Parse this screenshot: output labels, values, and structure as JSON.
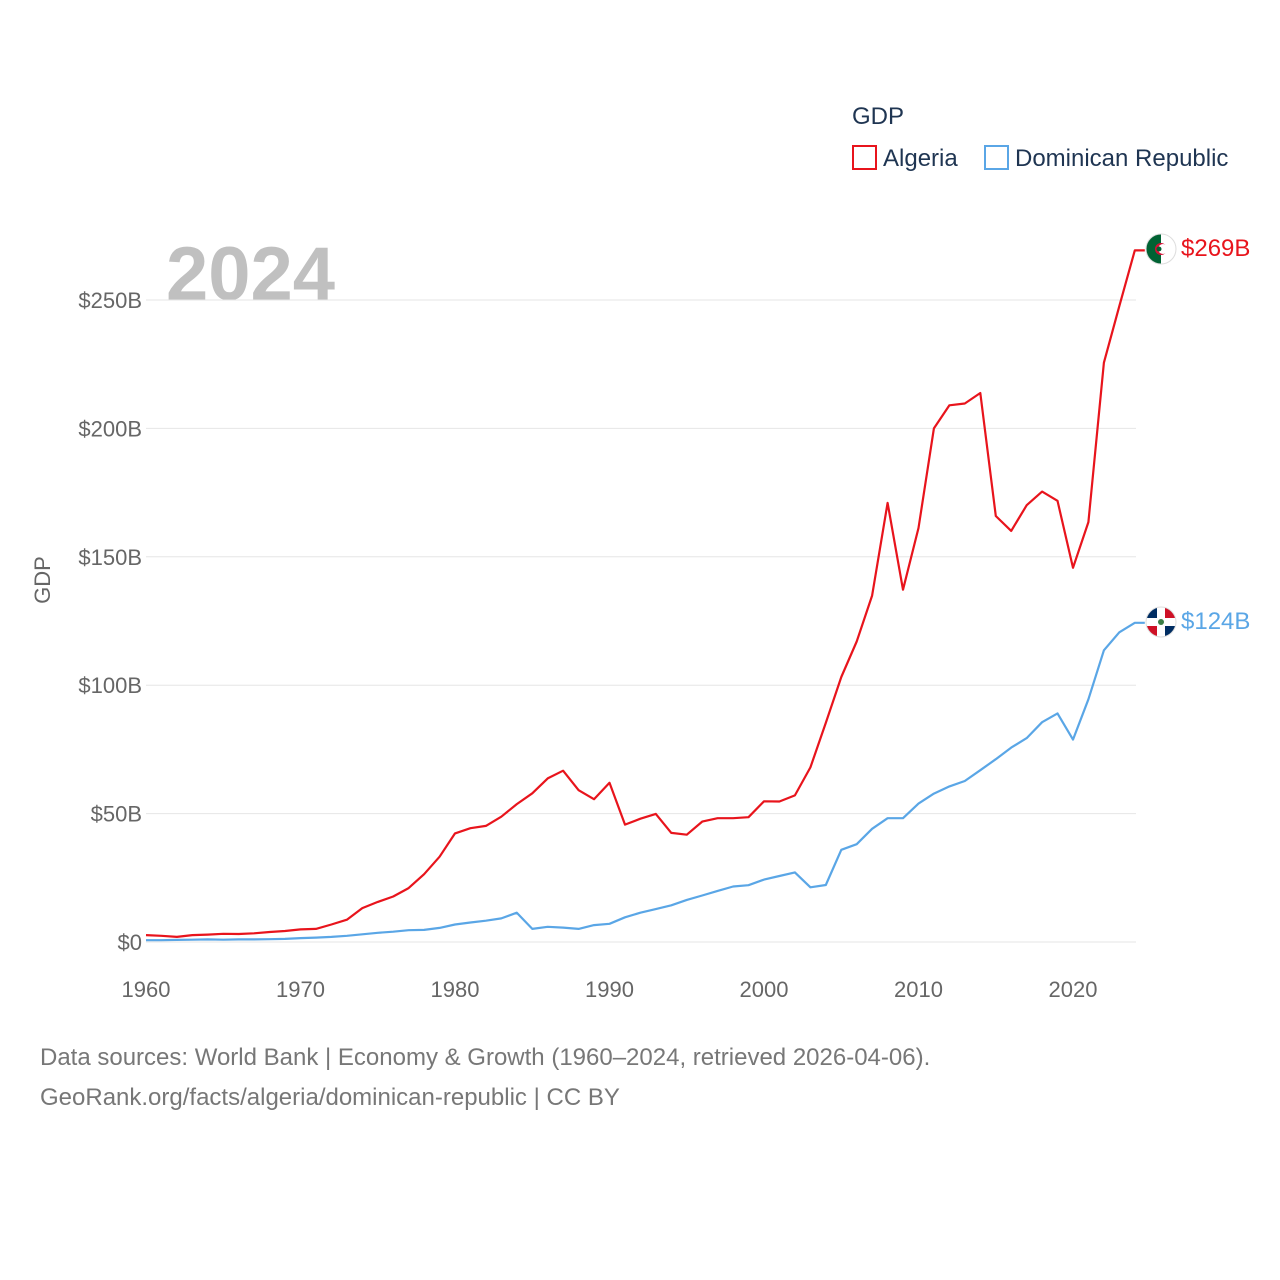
{
  "chart_data": {
    "type": "line",
    "title": "GDP",
    "year_label": "2024",
    "ylabel": "GDP",
    "xlabel": "",
    "xlim": [
      1960,
      2025
    ],
    "ylim": [
      0,
      250
    ],
    "x_ticks": [
      1960,
      1970,
      1980,
      1990,
      2000,
      2010,
      2020
    ],
    "y_ticks": [
      {
        "value": 0,
        "label": "$0"
      },
      {
        "value": 50,
        "label": "$50B"
      },
      {
        "value": 100,
        "label": "$100B"
      },
      {
        "value": 150,
        "label": "$150B"
      },
      {
        "value": 200,
        "label": "$200B"
      },
      {
        "value": 250,
        "label": "$250B"
      }
    ],
    "legend": {
      "title": "GDP",
      "position": "top-right"
    },
    "series": [
      {
        "name": "Algeria",
        "color": "#e8141c",
        "end_label": "$269B",
        "years": [
          1960,
          1961,
          1962,
          1963,
          1964,
          1965,
          1966,
          1967,
          1968,
          1969,
          1970,
          1971,
          1972,
          1973,
          1974,
          1975,
          1976,
          1977,
          1978,
          1979,
          1980,
          1981,
          1982,
          1983,
          1984,
          1985,
          1986,
          1987,
          1988,
          1989,
          1990,
          1991,
          1992,
          1993,
          1994,
          1995,
          1996,
          1997,
          1998,
          1999,
          2000,
          2001,
          2002,
          2003,
          2004,
          2005,
          2006,
          2007,
          2008,
          2009,
          2010,
          2011,
          2012,
          2013,
          2014,
          2015,
          2016,
          2017,
          2018,
          2019,
          2020,
          2021,
          2022,
          2023,
          2024
        ],
        "values": [
          2.7,
          2.4,
          2.0,
          2.7,
          2.9,
          3.2,
          3.1,
          3.4,
          3.9,
          4.3,
          4.9,
          5.1,
          6.8,
          8.7,
          13.2,
          15.6,
          17.7,
          21.0,
          26.4,
          33.2,
          42.3,
          44.3,
          45.2,
          48.8,
          53.7,
          57.9,
          63.7,
          66.7,
          59.1,
          55.6,
          62.0,
          45.7,
          48.0,
          49.9,
          42.5,
          41.8,
          46.9,
          48.2,
          48.2,
          48.6,
          54.8,
          54.7,
          57.1,
          68.0,
          85.3,
          103.2,
          117.0,
          134.9,
          171.0,
          137.2,
          161.2,
          200.0,
          209.0,
          209.7,
          213.8,
          165.9,
          160.1,
          170.1,
          175.4,
          171.8,
          145.7,
          163.5,
          225.6,
          247.6,
          269.3
        ]
      },
      {
        "name": "Dominican Republic",
        "color": "#5aa6e6",
        "end_label": "$124B",
        "years": [
          1960,
          1961,
          1962,
          1963,
          1964,
          1965,
          1966,
          1967,
          1968,
          1969,
          1970,
          1971,
          1972,
          1973,
          1974,
          1975,
          1976,
          1977,
          1978,
          1979,
          1980,
          1981,
          1982,
          1983,
          1984,
          1985,
          1986,
          1987,
          1988,
          1989,
          1990,
          1991,
          1992,
          1993,
          1994,
          1995,
          1996,
          1997,
          1998,
          1999,
          2000,
          2001,
          2002,
          2003,
          2004,
          2005,
          2006,
          2007,
          2008,
          2009,
          2010,
          2011,
          2012,
          2013,
          2014,
          2015,
          2016,
          2017,
          2018,
          2019,
          2020,
          2021,
          2022,
          2023,
          2024
        ],
        "values": [
          0.7,
          0.7,
          0.8,
          0.9,
          1.0,
          0.9,
          1.0,
          1.0,
          1.1,
          1.2,
          1.5,
          1.7,
          2.0,
          2.4,
          3.0,
          3.6,
          4.0,
          4.6,
          4.7,
          5.5,
          6.8,
          7.6,
          8.3,
          9.2,
          11.4,
          5.1,
          5.9,
          5.6,
          5.1,
          6.6,
          7.1,
          9.6,
          11.4,
          12.8,
          14.3,
          16.4,
          18.1,
          19.9,
          21.6,
          22.1,
          24.3,
          25.7,
          27.1,
          21.3,
          22.2,
          35.9,
          38.1,
          44.1,
          48.2,
          48.2,
          53.9,
          57.8,
          60.6,
          62.7,
          66.9,
          71.2,
          75.7,
          79.4,
          85.6,
          89.0,
          78.8,
          94.5,
          113.6,
          120.6,
          124.3
        ]
      }
    ]
  },
  "footer": {
    "line1": "Data sources: World Bank | Economy & Growth (1960–2024, retrieved 2026-04-06).",
    "line2": "GeoRank.org/facts/algeria/dominican-republic | CC BY"
  }
}
